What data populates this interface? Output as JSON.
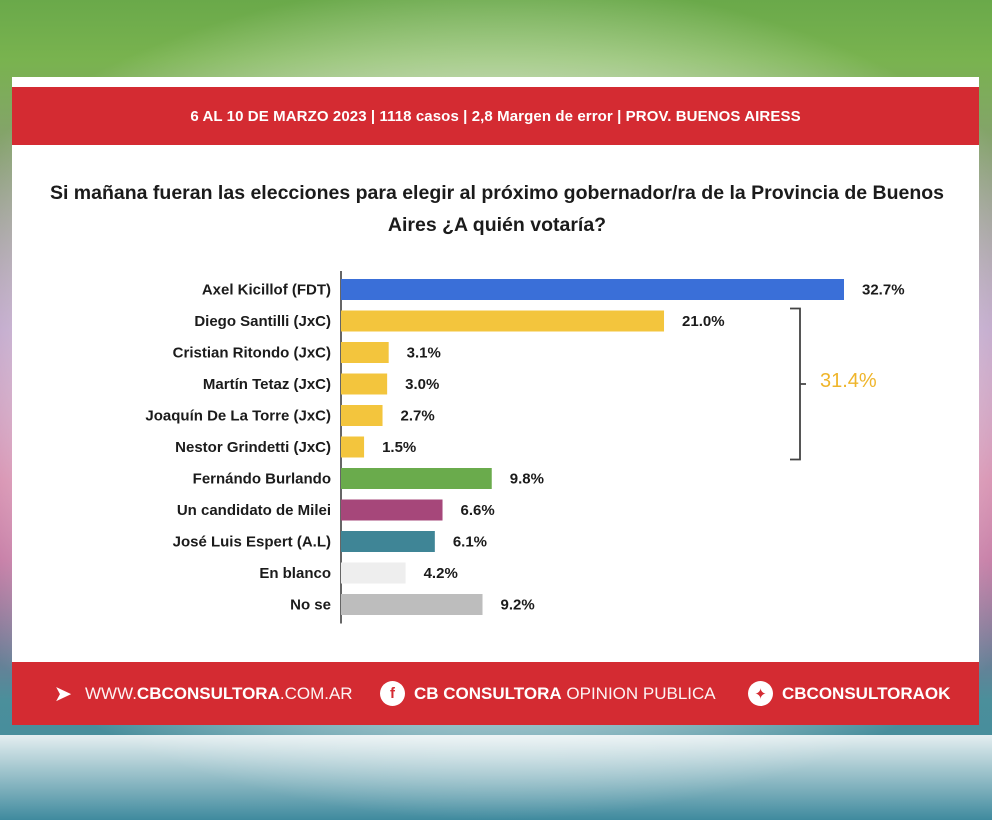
{
  "header": {
    "info": "6 AL 10 DE MARZO 2023 | 1118 casos  |  2,8 Margen de error  | PROV. BUENOS AIRESS"
  },
  "question": "Si mañana fueran las elecciones para elegir al próximo gobernador/ra de la Provincia de Buenos Aires ¿A quién votaría?",
  "chart_data": {
    "type": "bar",
    "orientation": "horizontal",
    "title": "",
    "categories": [
      "Axel Kicillof (FDT)",
      "Diego Santilli (JxC)",
      "Cristian Ritondo (JxC)",
      "Martín Tetaz (JxC)",
      "Joaquín De La Torre (JxC)",
      "Nestor Grindetti (JxC)",
      "Fernándo Burlando",
      "Un candidato de Milei",
      "José Luis Espert (A.L)",
      "En blanco",
      "No se"
    ],
    "values": [
      32.7,
      21.0,
      3.1,
      3.0,
      2.7,
      1.5,
      9.8,
      6.6,
      6.1,
      4.2,
      9.2
    ],
    "value_labels": [
      "32.7%",
      "21.0%",
      "3.1%",
      "3.0%",
      "2.7%",
      "1.5%",
      "9.8%",
      "6.6%",
      "6.1%",
      "4.2%",
      "9.2%"
    ],
    "colors": [
      "#3a6fd8",
      "#f3c53d",
      "#f3c53d",
      "#f3c53d",
      "#f3c53d",
      "#f3c53d",
      "#6aab4c",
      "#a6477a",
      "#3f8596",
      "#eeeeee",
      "#bdbdbd"
    ],
    "xlim": [
      0,
      32.7
    ],
    "grid": false,
    "legend": "none",
    "bracket": {
      "label": "31.4%",
      "color": "#efb52b",
      "from_category": "Diego Santilli (JxC)",
      "to_category": "Nestor Grindetti (JxC)"
    }
  },
  "footer": {
    "web_prefix": "WWW.",
    "web_bold": "CBCONSULTORA",
    "web_suffix": ".COM.AR",
    "facebook_bold": "CB CONSULTORA",
    "facebook_light": "OPINION PUBLICA",
    "twitter": "CBCONSULTORAOK",
    "icon_cursor": "cursor-click-icon",
    "icon_facebook": "facebook-icon",
    "icon_twitter": "twitter-icon"
  }
}
